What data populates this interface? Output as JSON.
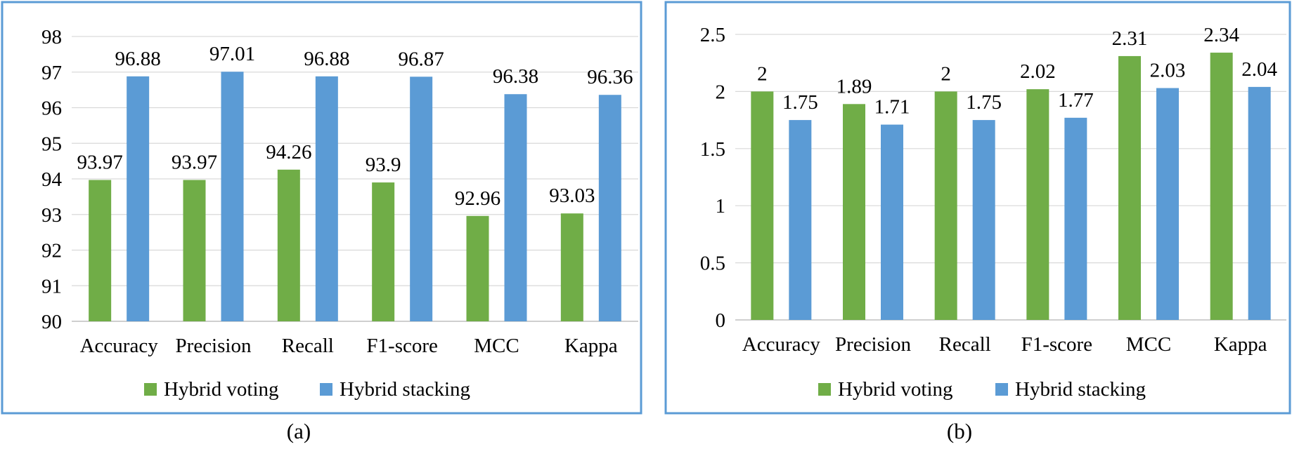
{
  "chart_data": [
    {
      "type": "bar",
      "panel_label": "(a)",
      "categories": [
        "Accuracy",
        "Precision",
        "Recall",
        "F1-score",
        "MCC",
        "Kappa"
      ],
      "series": [
        {
          "name": "Hybrid voting",
          "color": "#70ad47",
          "values": [
            93.97,
            93.97,
            94.26,
            93.9,
            92.96,
            93.03
          ],
          "labels": [
            "93.97",
            "93.97",
            "94.26",
            "93.9",
            "92.96",
            "93.03"
          ]
        },
        {
          "name": "Hybrid stacking",
          "color": "#5b9bd5",
          "values": [
            96.88,
            97.01,
            96.88,
            96.87,
            96.38,
            96.36
          ],
          "labels": [
            "96.88",
            "97.01",
            "96.88",
            "96.87",
            "96.38",
            "96.36"
          ]
        }
      ],
      "ylim": [
        90,
        98
      ],
      "yticks": [
        "90",
        "91",
        "92",
        "93",
        "94",
        "95",
        "96",
        "97",
        "98"
      ],
      "legend_position": "bottom",
      "grid": true,
      "title": "",
      "xlabel": "",
      "ylabel": ""
    },
    {
      "type": "bar",
      "panel_label": "(b)",
      "categories": [
        "Accuracy",
        "Precision",
        "Recall",
        "F1-score",
        "MCC",
        "Kappa"
      ],
      "series": [
        {
          "name": "Hybrid voting",
          "color": "#70ad47",
          "values": [
            2,
            1.89,
            2,
            2.02,
            2.31,
            2.34
          ],
          "labels": [
            "2",
            "1.89",
            "2",
            "2.02",
            "2.31",
            "2.34"
          ]
        },
        {
          "name": "Hybrid stacking",
          "color": "#5b9bd5",
          "values": [
            1.75,
            1.71,
            1.75,
            1.77,
            2.03,
            2.04
          ],
          "labels": [
            "1.75",
            "1.71",
            "1.75",
            "1.77",
            "2.03",
            "2.04"
          ]
        }
      ],
      "ylim": [
        0,
        2.5
      ],
      "yticks": [
        "0",
        "0.5",
        "1",
        "1.5",
        "2",
        "2.5"
      ],
      "legend_position": "bottom",
      "grid": true,
      "title": "",
      "xlabel": "",
      "ylabel": ""
    }
  ]
}
